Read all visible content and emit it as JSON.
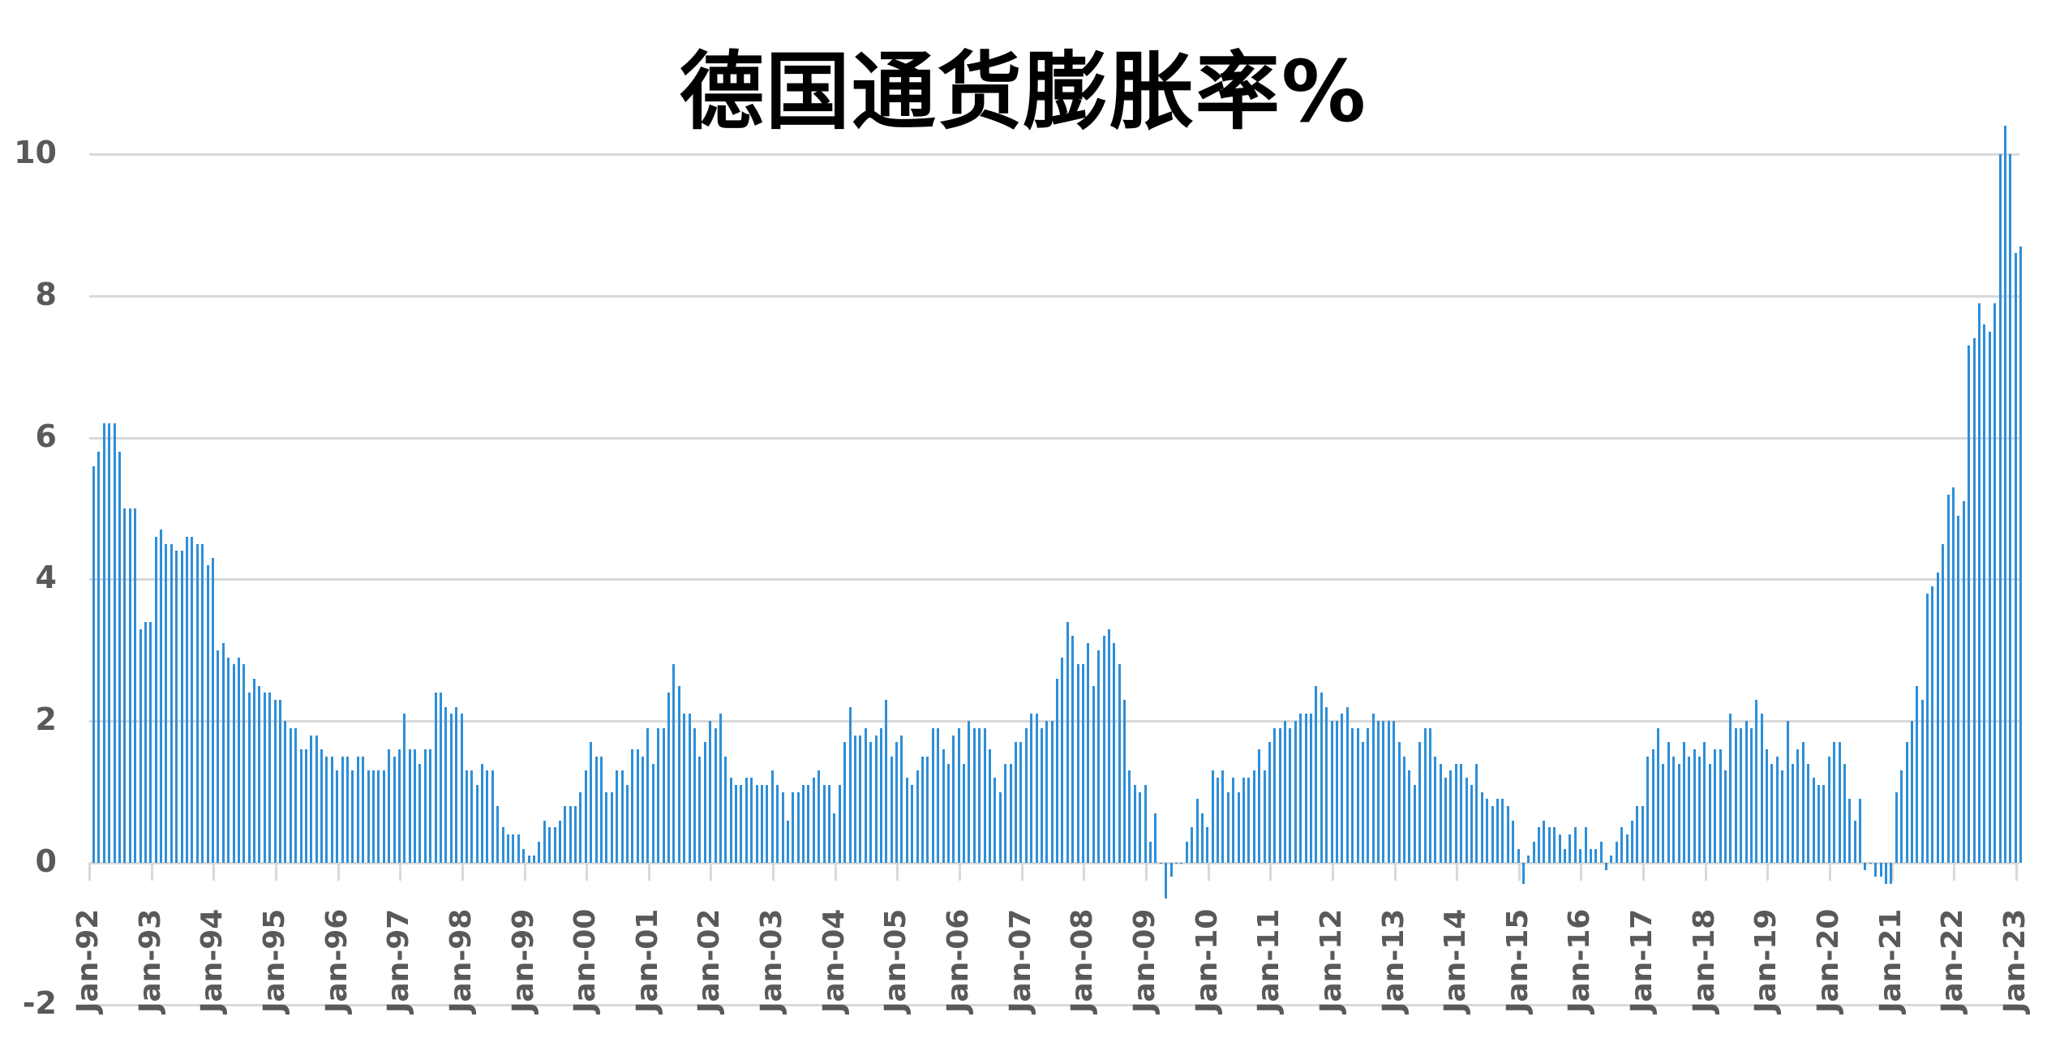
{
  "chart_data": {
    "type": "bar",
    "title": "德国通货膨胀率%",
    "xlabel": "",
    "ylabel": "",
    "ylim": [
      -2,
      10
    ],
    "yticks": [
      10,
      8,
      6,
      4,
      2,
      0,
      -2
    ],
    "grid": true,
    "legend": "none",
    "bar_color": "#2E8FD8",
    "grid_color": "#D9D9D9",
    "label_color": "#595959",
    "x_tick_labels": [
      "Jan-92",
      "Jan-93",
      "Jan-94",
      "Jan-95",
      "Jan-96",
      "Jan-97",
      "Jan-98",
      "Jan-99",
      "Jan-00",
      "Jan-01",
      "Jan-02",
      "Jan-03",
      "Jan-04",
      "Jan-05",
      "Jan-06",
      "Jan-07",
      "Jan-08",
      "Jan-09",
      "Jan-10",
      "Jan-11",
      "Jan-12",
      "Jan-13",
      "Jan-14",
      "Jan-15",
      "Jan-16",
      "Jan-17",
      "Jan-18",
      "Jan-19",
      "Jan-20",
      "Jan-21",
      "Jan-22",
      "Jan-23"
    ],
    "start": "Jan-92",
    "frequency": "monthly",
    "values": [
      5.6,
      5.8,
      6.2,
      6.2,
      6.2,
      5.8,
      5.0,
      5.0,
      5.0,
      3.3,
      3.4,
      3.4,
      4.6,
      4.7,
      4.5,
      4.5,
      4.4,
      4.4,
      4.6,
      4.6,
      4.5,
      4.5,
      4.2,
      4.3,
      3.0,
      3.1,
      2.9,
      2.8,
      2.9,
      2.8,
      2.4,
      2.6,
      2.5,
      2.4,
      2.4,
      2.3,
      2.3,
      2.0,
      1.9,
      1.9,
      1.6,
      1.6,
      1.8,
      1.8,
      1.6,
      1.5,
      1.5,
      1.3,
      1.5,
      1.5,
      1.3,
      1.5,
      1.5,
      1.3,
      1.3,
      1.3,
      1.3,
      1.6,
      1.5,
      1.6,
      2.1,
      1.6,
      1.6,
      1.4,
      1.6,
      1.6,
      2.4,
      2.4,
      2.2,
      2.1,
      2.2,
      2.1,
      1.3,
      1.3,
      1.1,
      1.4,
      1.3,
      1.3,
      0.8,
      0.5,
      0.4,
      0.4,
      0.4,
      0.2,
      0.1,
      0.1,
      0.3,
      0.6,
      0.5,
      0.5,
      0.6,
      0.8,
      0.8,
      0.8,
      1.0,
      1.3,
      1.7,
      1.5,
      1.5,
      1.0,
      1.0,
      1.3,
      1.3,
      1.1,
      1.6,
      1.6,
      1.5,
      1.9,
      1.4,
      1.9,
      1.9,
      2.4,
      2.8,
      2.5,
      2.1,
      2.1,
      1.9,
      1.5,
      1.7,
      2.0,
      1.9,
      2.1,
      1.5,
      1.2,
      1.1,
      1.1,
      1.2,
      1.2,
      1.1,
      1.1,
      1.1,
      1.3,
      1.1,
      1.0,
      0.6,
      1.0,
      1.0,
      1.1,
      1.1,
      1.2,
      1.3,
      1.1,
      1.1,
      0.7,
      1.1,
      1.7,
      2.2,
      1.8,
      1.8,
      1.9,
      1.7,
      1.8,
      1.9,
      2.3,
      1.5,
      1.7,
      1.8,
      1.2,
      1.1,
      1.3,
      1.5,
      1.5,
      1.9,
      1.9,
      1.6,
      1.4,
      1.8,
      1.9,
      1.4,
      2.0,
      1.9,
      1.9,
      1.9,
      1.6,
      1.2,
      1.0,
      1.4,
      1.4,
      1.7,
      1.7,
      1.9,
      2.1,
      2.1,
      1.9,
      2.0,
      2.0,
      2.6,
      2.9,
      3.4,
      3.2,
      2.8,
      2.8,
      3.1,
      2.5,
      3.0,
      3.2,
      3.3,
      3.1,
      2.8,
      2.3,
      1.3,
      1.1,
      1.0,
      1.1,
      0.3,
      0.7,
      0.0,
      -0.5,
      -0.2,
      0.0,
      0.0,
      0.3,
      0.5,
      0.9,
      0.7,
      0.5,
      1.3,
      1.2,
      1.3,
      1.0,
      1.2,
      1.0,
      1.2,
      1.2,
      1.3,
      1.6,
      1.3,
      1.7,
      1.9,
      1.9,
      2.0,
      1.9,
      2.0,
      2.1,
      2.1,
      2.1,
      2.5,
      2.4,
      2.2,
      2.0,
      2.0,
      2.1,
      2.2,
      1.9,
      1.9,
      1.7,
      1.9,
      2.1,
      2.0,
      2.0,
      2.0,
      2.0,
      1.7,
      1.5,
      1.3,
      1.1,
      1.7,
      1.9,
      1.9,
      1.5,
      1.4,
      1.2,
      1.3,
      1.4,
      1.4,
      1.2,
      1.1,
      1.4,
      1.0,
      0.9,
      0.8,
      0.9,
      0.9,
      0.8,
      0.6,
      0.2,
      -0.3,
      0.1,
      0.3,
      0.5,
      0.6,
      0.5,
      0.5,
      0.4,
      0.2,
      0.4,
      0.5,
      0.2,
      0.5,
      0.2,
      0.2,
      0.3,
      -0.1,
      0.1,
      0.3,
      0.5,
      0.4,
      0.6,
      0.8,
      0.8,
      1.5,
      1.6,
      1.9,
      1.4,
      1.7,
      1.5,
      1.4,
      1.7,
      1.5,
      1.6,
      1.5,
      1.7,
      1.4,
      1.6,
      1.6,
      1.3,
      2.1,
      1.9,
      1.9,
      2.0,
      1.9,
      2.3,
      2.1,
      1.6,
      1.4,
      1.5,
      1.3,
      2.0,
      1.4,
      1.6,
      1.7,
      1.4,
      1.2,
      1.1,
      1.1,
      1.5,
      1.7,
      1.7,
      1.4,
      0.9,
      0.6,
      0.9,
      -0.1,
      0.0,
      -0.2,
      -0.2,
      -0.3,
      -0.3,
      1.0,
      1.3,
      1.7,
      2.0,
      2.5,
      2.3,
      3.8,
      3.9,
      4.1,
      4.5,
      5.2,
      5.3,
      4.9,
      5.1,
      7.3,
      7.4,
      7.9,
      7.6,
      7.5,
      7.9,
      10.0,
      10.4,
      10.0,
      8.6,
      8.7
    ]
  }
}
